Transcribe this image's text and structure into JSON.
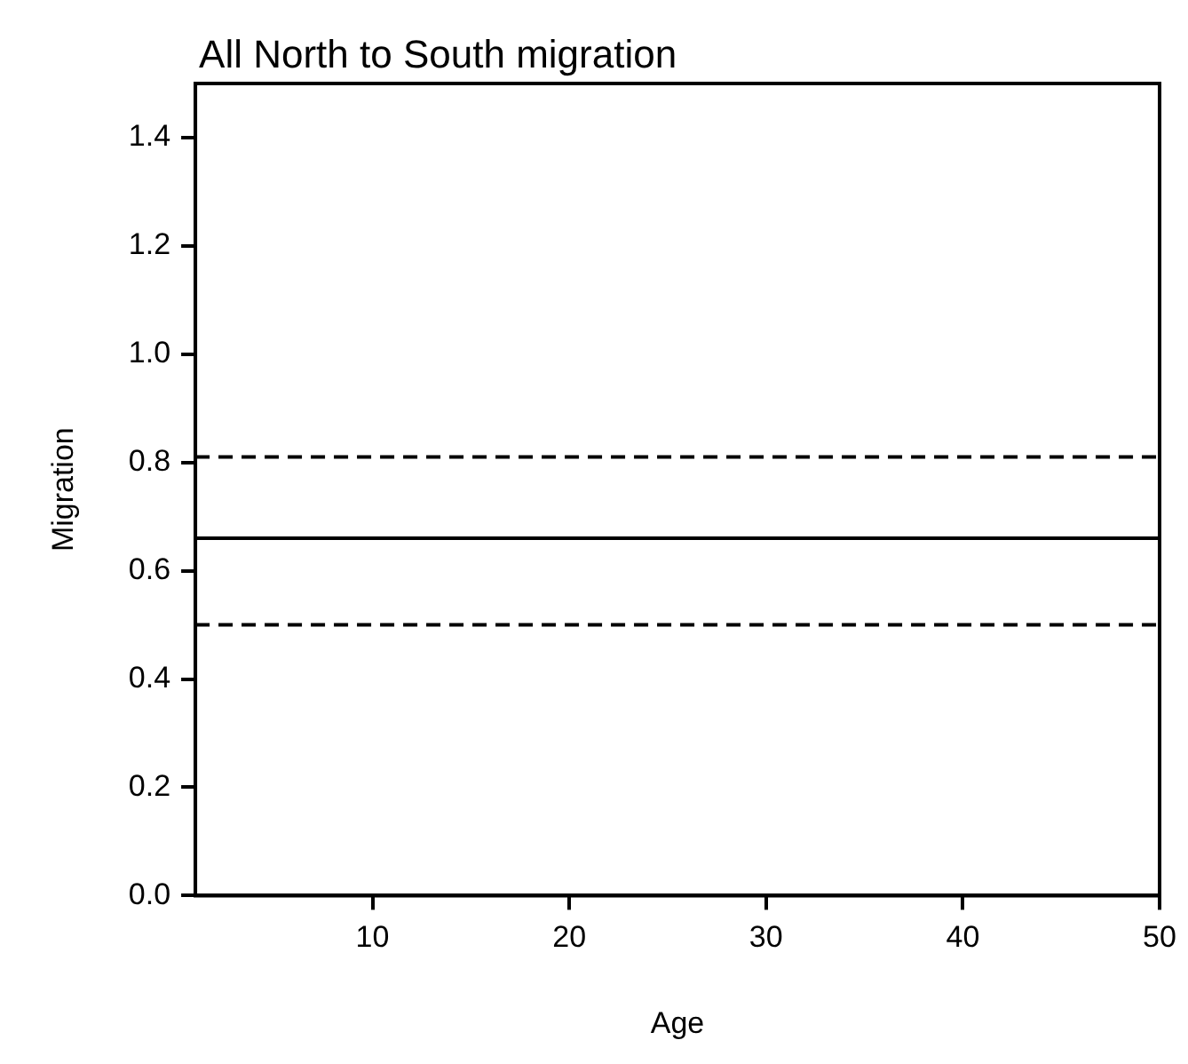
{
  "chart_data": {
    "type": "line",
    "title": "All North to South migration",
    "xlabel": "Age",
    "ylabel": "Migration",
    "xlim": [
      1,
      50
    ],
    "xticks": [
      10,
      20,
      30,
      40,
      50
    ],
    "ylim": [
      0,
      1.5
    ],
    "yticks": [
      {
        "value": 0,
        "label": "0.0"
      },
      {
        "value": 0.2,
        "label": "0.2"
      },
      {
        "value": 0.4,
        "label": "0.4"
      },
      {
        "value": 0.6,
        "label": "0.6"
      },
      {
        "value": 0.8,
        "label": "0.8"
      },
      {
        "value": 1,
        "label": "1.0"
      },
      {
        "value": 1.2,
        "label": "1.2"
      },
      {
        "value": 1.4,
        "label": "1.4"
      }
    ],
    "grid": false,
    "legend": false,
    "ref_lines": [
      {
        "axis": "y",
        "value": 0.66,
        "color": "#000000",
        "line_style": "solid"
      },
      {
        "axis": "y",
        "value": 0.81,
        "color": "#000000",
        "line_style": "dashed"
      },
      {
        "axis": "y",
        "value": 0.5,
        "color": "#000000",
        "line_style": "dashed"
      }
    ]
  }
}
